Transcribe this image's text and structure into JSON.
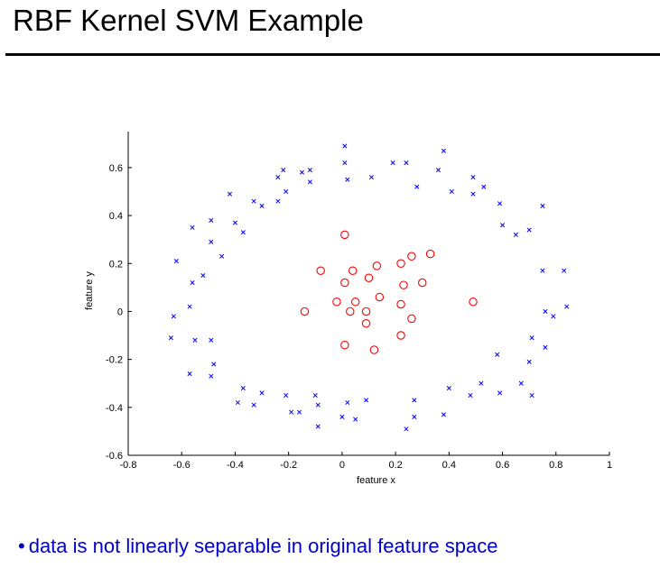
{
  "slide": {
    "title": "RBF Kernel SVM Example",
    "bullet_symbol": "•",
    "bullet_text": "data is not linearly separable in original feature space"
  },
  "colors": {
    "class_x": "#0000ff",
    "class_o": "#ff0000",
    "axis": "#000000",
    "bullet_text": "#0000cc"
  },
  "chart_data": {
    "type": "scatter",
    "title": "",
    "xlabel": "feature x",
    "ylabel": "feature y",
    "xlim": [
      -0.8,
      1
    ],
    "ylim": [
      -0.6,
      0.75
    ],
    "xticks": [
      -0.8,
      -0.6,
      -0.4,
      -0.2,
      0,
      0.2,
      0.4,
      0.6,
      0.8,
      1
    ],
    "xtick_labels": [
      "-0.8",
      "-0.6",
      "-0.4",
      "-0.2",
      "0",
      "0.2",
      "0.4",
      "0.6",
      "0.8",
      "1"
    ],
    "yticks": [
      -0.6,
      -0.4,
      -0.2,
      0,
      0.2,
      0.4,
      0.6
    ],
    "ytick_labels": [
      "-0.6",
      "-0.4",
      "-0.2",
      "0",
      "0.2",
      "0.4",
      "0.6"
    ],
    "grid": false,
    "series": [
      {
        "name": "outer ring (x)",
        "marker": "x",
        "points": [
          [
            0.01,
            0.69
          ],
          [
            0.38,
            0.67
          ],
          [
            0.01,
            0.62
          ],
          [
            0.19,
            0.62
          ],
          [
            0.24,
            0.62
          ],
          [
            -0.12,
            0.59
          ],
          [
            -0.22,
            0.59
          ],
          [
            -0.15,
            0.58
          ],
          [
            0.36,
            0.59
          ],
          [
            0.49,
            0.56
          ],
          [
            -0.24,
            0.56
          ],
          [
            0.11,
            0.56
          ],
          [
            0.02,
            0.55
          ],
          [
            -0.12,
            0.54
          ],
          [
            0.28,
            0.52
          ],
          [
            0.53,
            0.52
          ],
          [
            -0.42,
            0.49
          ],
          [
            -0.21,
            0.5
          ],
          [
            0.41,
            0.5
          ],
          [
            0.49,
            0.49
          ],
          [
            -0.33,
            0.46
          ],
          [
            -0.24,
            0.46
          ],
          [
            -0.3,
            0.44
          ],
          [
            0.59,
            0.45
          ],
          [
            0.75,
            0.44
          ],
          [
            -0.49,
            0.38
          ],
          [
            -0.4,
            0.37
          ],
          [
            0.6,
            0.36
          ],
          [
            -0.56,
            0.35
          ],
          [
            0.7,
            0.34
          ],
          [
            -0.37,
            0.33
          ],
          [
            0.65,
            0.32
          ],
          [
            -0.49,
            0.29
          ],
          [
            -0.45,
            0.23
          ],
          [
            -0.62,
            0.21
          ],
          [
            0.75,
            0.17
          ],
          [
            0.83,
            0.17
          ],
          [
            -0.52,
            0.15
          ],
          [
            -0.56,
            0.12
          ],
          [
            -0.57,
            0.02
          ],
          [
            0.84,
            0.02
          ],
          [
            0.76,
            0.0
          ],
          [
            0.79,
            -0.02
          ],
          [
            -0.63,
            -0.02
          ],
          [
            -0.64,
            -0.11
          ],
          [
            0.71,
            -0.11
          ],
          [
            -0.49,
            -0.12
          ],
          [
            -0.55,
            -0.12
          ],
          [
            0.76,
            -0.15
          ],
          [
            0.58,
            -0.18
          ],
          [
            0.7,
            -0.21
          ],
          [
            -0.48,
            -0.22
          ],
          [
            -0.57,
            -0.26
          ],
          [
            -0.49,
            -0.27
          ],
          [
            0.52,
            -0.3
          ],
          [
            0.67,
            -0.3
          ],
          [
            -0.37,
            -0.32
          ],
          [
            0.4,
            -0.32
          ],
          [
            -0.3,
            -0.34
          ],
          [
            0.59,
            -0.34
          ],
          [
            0.48,
            -0.35
          ],
          [
            0.71,
            -0.35
          ],
          [
            -0.21,
            -0.35
          ],
          [
            -0.1,
            -0.35
          ],
          [
            0.09,
            -0.37
          ],
          [
            0.27,
            -0.37
          ],
          [
            -0.39,
            -0.38
          ],
          [
            0.02,
            -0.38
          ],
          [
            -0.33,
            -0.39
          ],
          [
            -0.09,
            -0.39
          ],
          [
            -0.19,
            -0.42
          ],
          [
            -0.16,
            -0.42
          ],
          [
            0.38,
            -0.43
          ],
          [
            0.0,
            -0.44
          ],
          [
            0.27,
            -0.44
          ],
          [
            0.05,
            -0.45
          ],
          [
            -0.09,
            -0.48
          ],
          [
            0.24,
            -0.49
          ]
        ]
      },
      {
        "name": "inner cluster (o)",
        "marker": "o",
        "points": [
          [
            0.01,
            0.32
          ],
          [
            0.33,
            0.24
          ],
          [
            0.26,
            0.23
          ],
          [
            0.22,
            0.2
          ],
          [
            0.13,
            0.19
          ],
          [
            -0.08,
            0.17
          ],
          [
            0.04,
            0.17
          ],
          [
            0.1,
            0.14
          ],
          [
            0.01,
            0.12
          ],
          [
            0.3,
            0.12
          ],
          [
            0.23,
            0.11
          ],
          [
            0.14,
            0.06
          ],
          [
            -0.02,
            0.04
          ],
          [
            0.05,
            0.04
          ],
          [
            0.22,
            0.03
          ],
          [
            0.49,
            0.04
          ],
          [
            -0.14,
            0.0
          ],
          [
            0.03,
            0.0
          ],
          [
            0.09,
            0.0
          ],
          [
            0.26,
            -0.03
          ],
          [
            0.09,
            -0.05
          ],
          [
            0.22,
            -0.1
          ],
          [
            0.01,
            -0.14
          ],
          [
            0.12,
            -0.16
          ]
        ]
      }
    ]
  }
}
